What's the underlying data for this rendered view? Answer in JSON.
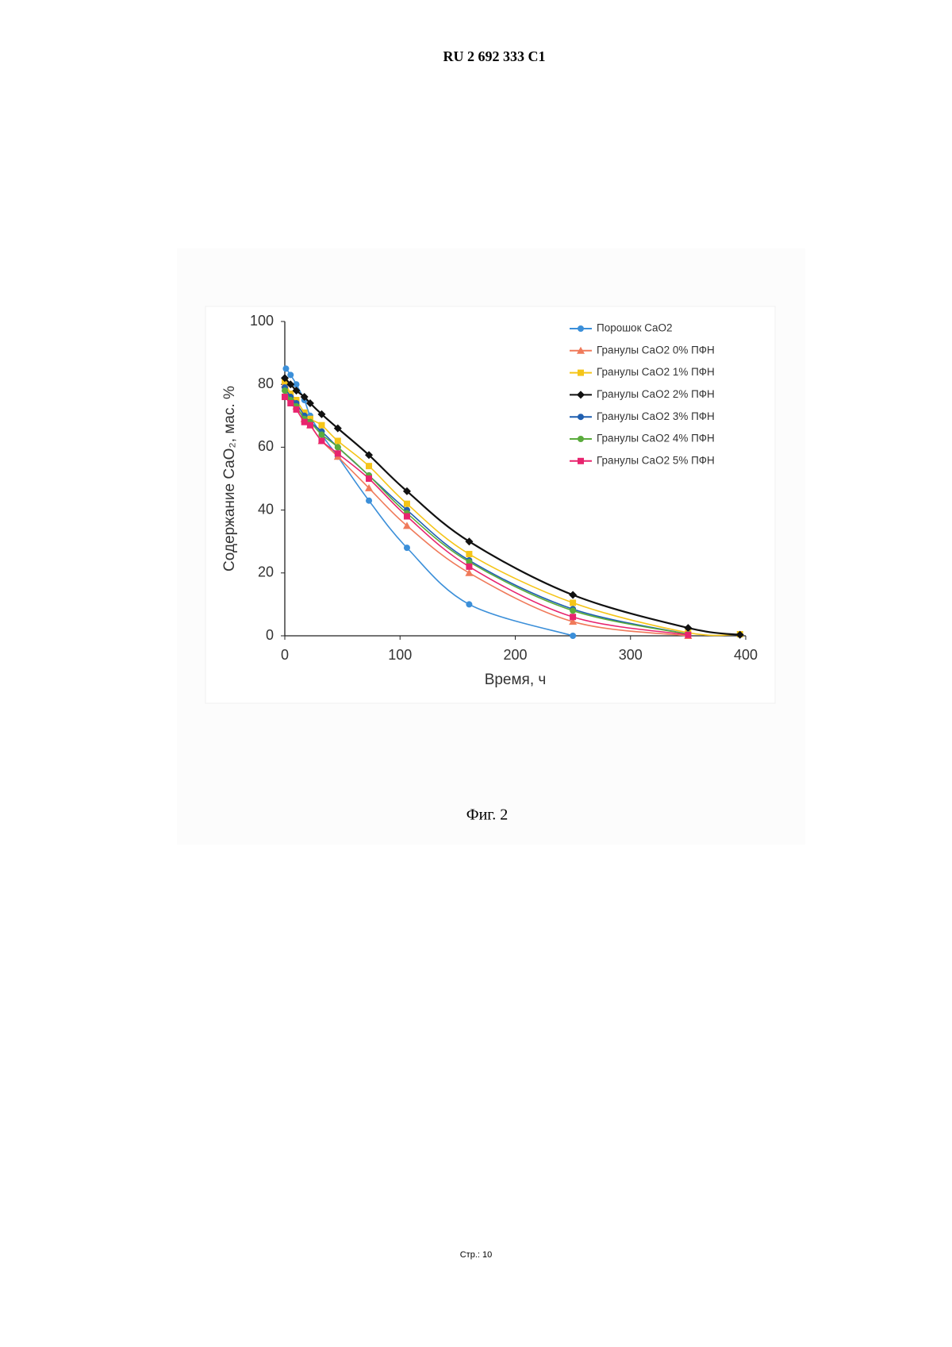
{
  "header": {
    "title": "RU 2 692 333 C1"
  },
  "chart_data": {
    "type": "line",
    "xlabel": "Время, ч",
    "ylabel": "Содержание CaO₂, мас. %",
    "xlim": [
      0,
      400
    ],
    "xticks": [
      0,
      100,
      200,
      300,
      400
    ],
    "ylim": [
      0,
      100
    ],
    "yticks": [
      0,
      20,
      40,
      60,
      80,
      100
    ],
    "grid": false,
    "legend": "upper right",
    "series": [
      {
        "name": "Порошок CaO2",
        "color": "#3b8fd9",
        "marker": "circle",
        "x": [
          1,
          5,
          10,
          17,
          22,
          32,
          46,
          73,
          106,
          160,
          250
        ],
        "values": [
          85,
          83,
          80,
          75,
          70,
          64,
          57,
          43,
          28,
          10,
          0
        ]
      },
      {
        "name": "Гранулы CaO2  0% ПФН",
        "color": "#f07a5a",
        "marker": "triangle",
        "x": [
          0,
          5,
          10,
          17,
          22,
          32,
          46,
          73,
          106,
          160,
          250,
          350
        ],
        "values": [
          80,
          76,
          73,
          69,
          67,
          62,
          57,
          47,
          35,
          20,
          4.5,
          0
        ]
      },
      {
        "name": "Гранулы CaO2 1% ПФН",
        "color": "#f5c518",
        "marker": "square",
        "x": [
          0,
          5,
          10,
          17,
          22,
          32,
          46,
          73,
          106,
          160,
          250,
          350,
          395
        ],
        "values": [
          81,
          77,
          75,
          71,
          69,
          67,
          62,
          54,
          42,
          26,
          10.5,
          1,
          0.5
        ]
      },
      {
        "name": "Гранулы CaO2 2% ПФН",
        "color": "#111111",
        "marker": "diamond",
        "x": [
          0,
          5,
          10,
          17,
          22,
          32,
          46,
          73,
          106,
          160,
          250,
          350,
          395
        ],
        "values": [
          82,
          80,
          78,
          76,
          74,
          70.5,
          66,
          57.5,
          46,
          30,
          13,
          2.5,
          0.3
        ]
      },
      {
        "name": "Гранулы CaO2 3% ПФН",
        "color": "#1f5fb0",
        "marker": "circle",
        "x": [
          0,
          5,
          10,
          17,
          22,
          32,
          46,
          73,
          106,
          160,
          250,
          350
        ],
        "values": [
          79,
          76,
          74,
          70,
          68,
          65,
          60,
          51,
          40,
          24,
          8.5,
          0.5
        ]
      },
      {
        "name": "Гранулы CaO2 4% ПФН",
        "color": "#5aab3c",
        "marker": "circle",
        "x": [
          0,
          5,
          10,
          17,
          22,
          32,
          46,
          73,
          106,
          160,
          250,
          350
        ],
        "values": [
          78,
          75,
          73,
          69,
          68,
          64,
          60,
          51,
          39,
          23.5,
          8,
          0.5
        ]
      },
      {
        "name": "Гранулы CaO2 5% ПФН",
        "color": "#e8246e",
        "marker": "square",
        "x": [
          0,
          5,
          10,
          17,
          22,
          32,
          46,
          73,
          106,
          160,
          250,
          350
        ],
        "values": [
          76,
          74,
          72,
          68,
          67,
          62,
          58,
          50,
          38,
          22,
          6,
          0.3
        ]
      }
    ]
  },
  "caption": "Фиг. 2",
  "footer": "Стр.: 10"
}
